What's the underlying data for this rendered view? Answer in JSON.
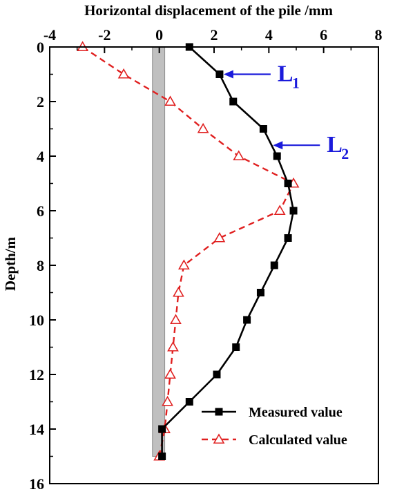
{
  "chart_data": {
    "type": "line",
    "title": "",
    "xlabel": "Horizontal displacement of the pile /mm",
    "ylabel": "Depth/m",
    "xlim": [
      -4,
      8
    ],
    "ylim": [
      0,
      16
    ],
    "y_inverted": true,
    "x_axis_position": "top",
    "x_ticks": [
      -4,
      -2,
      0,
      2,
      4,
      6,
      8
    ],
    "y_ticks": [
      0,
      2,
      4,
      6,
      8,
      10,
      12,
      14,
      16
    ],
    "legend_position": "bottom-right",
    "pile_band": {
      "x_range": [
        -0.25,
        0.2
      ],
      "depth_range": [
        0,
        15
      ],
      "color": "#c0c0c0"
    },
    "series": [
      {
        "name": "Measured value",
        "color": "#000000",
        "marker": "filled-square",
        "line_style": "solid",
        "points": [
          [
            1.1,
            0
          ],
          [
            2.2,
            1
          ],
          [
            2.7,
            2
          ],
          [
            3.8,
            3
          ],
          [
            4.3,
            4
          ],
          [
            4.7,
            5
          ],
          [
            4.9,
            6
          ],
          [
            4.7,
            7
          ],
          [
            4.2,
            8
          ],
          [
            3.7,
            9
          ],
          [
            3.2,
            10
          ],
          [
            2.8,
            11
          ],
          [
            2.1,
            12
          ],
          [
            1.1,
            13
          ],
          [
            0.1,
            14
          ],
          [
            0.1,
            15
          ]
        ]
      },
      {
        "name": "Calculated value",
        "color": "#e02020",
        "marker": "open-triangle",
        "line_style": "dashed",
        "points": [
          [
            -2.8,
            0
          ],
          [
            -1.3,
            1
          ],
          [
            0.4,
            2
          ],
          [
            1.6,
            3
          ],
          [
            2.9,
            4
          ],
          [
            4.9,
            5
          ],
          [
            4.4,
            6
          ],
          [
            2.2,
            7
          ],
          [
            0.9,
            8
          ],
          [
            0.7,
            9
          ],
          [
            0.6,
            10
          ],
          [
            0.5,
            11
          ],
          [
            0.4,
            12
          ],
          [
            0.3,
            13
          ],
          [
            0.2,
            14
          ],
          [
            0.0,
            15
          ]
        ]
      }
    ],
    "annotations": [
      {
        "label": "L",
        "subscript": "1",
        "depth": 1.0,
        "arrow_tip_x": 2.35,
        "color": "#1a1adb"
      },
      {
        "label": "L",
        "subscript": "2",
        "depth": 3.6,
        "arrow_tip_x": 4.15,
        "color": "#1a1adb"
      }
    ]
  }
}
